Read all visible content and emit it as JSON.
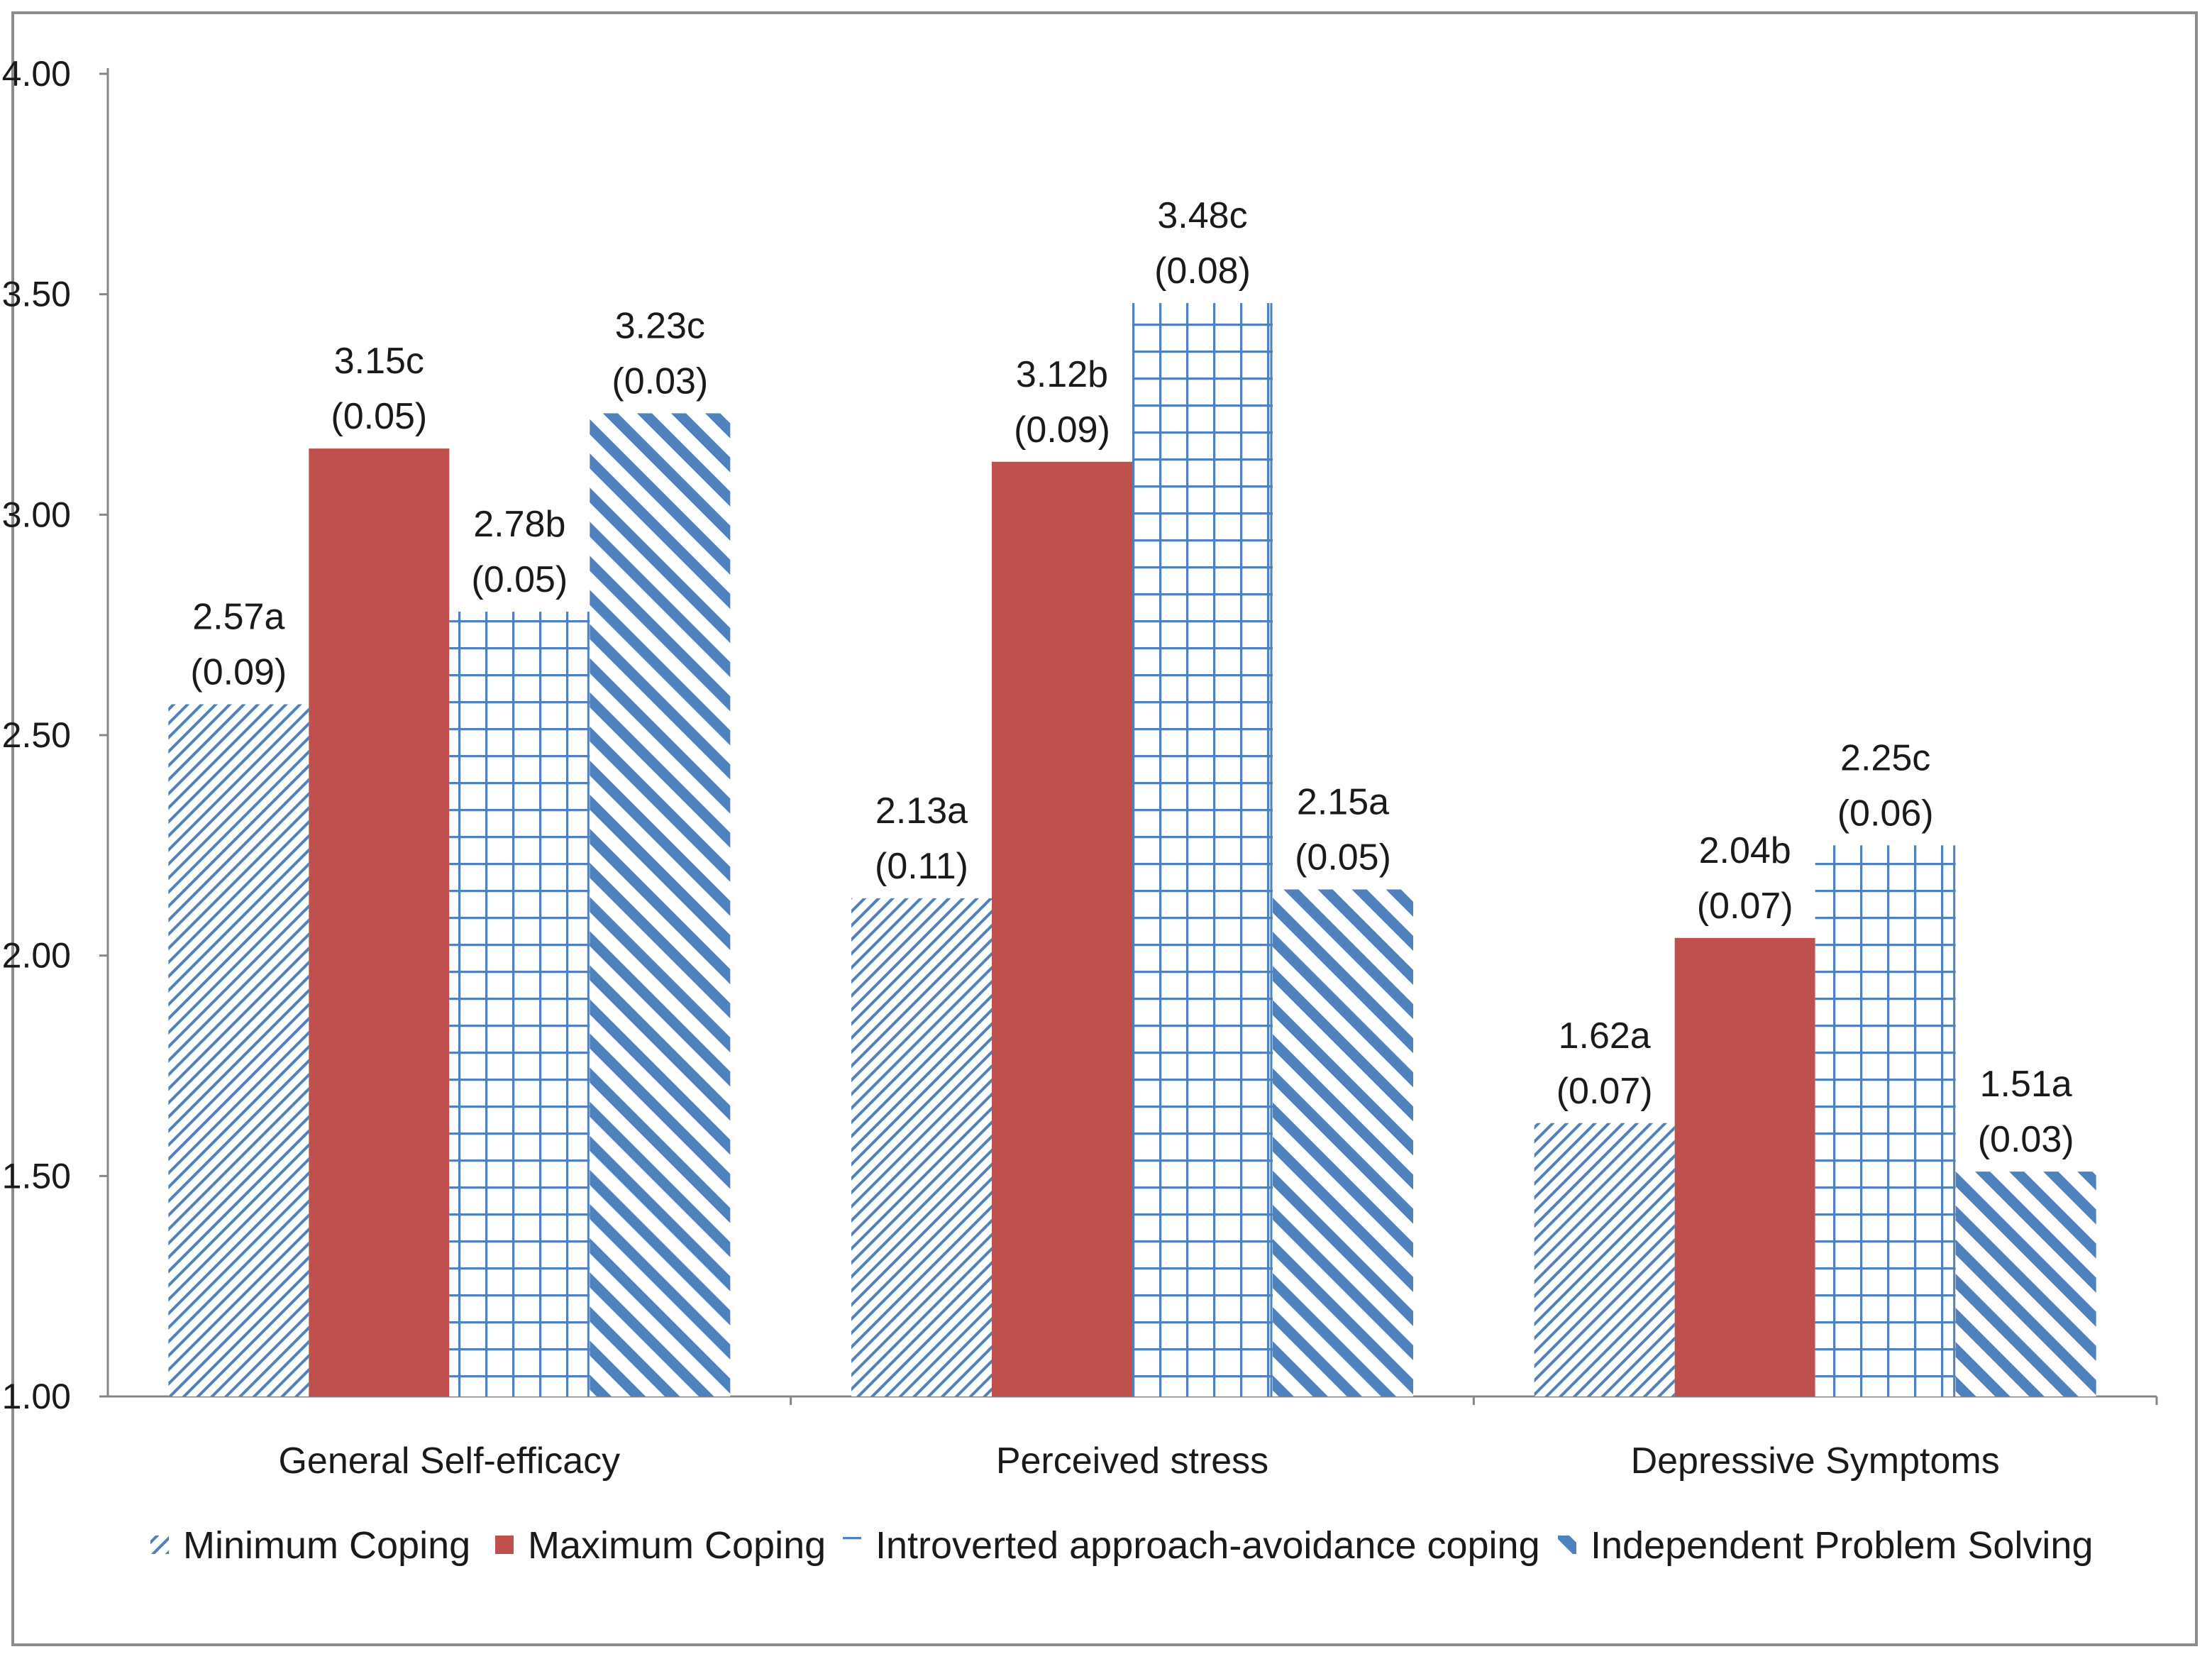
{
  "chart_data": {
    "type": "bar",
    "title": "",
    "xlabel": "",
    "ylabel": "",
    "ylim": [
      1.0,
      4.0
    ],
    "yticks": [
      "1.00",
      "1.50",
      "2.00",
      "2.50",
      "3.00",
      "3.50",
      "4.00"
    ],
    "grid": false,
    "legend_position": "bottom",
    "categories": [
      "General Self-efficacy",
      "Perceived stress",
      "Depressive Symptoms"
    ],
    "series": [
      {
        "name": "Minimum Coping",
        "pattern": "diagonal-thin",
        "color": "#4f81bd",
        "values": [
          2.57,
          2.13,
          1.62
        ],
        "labels": [
          "2.57a",
          "2.13a",
          "1.62a"
        ],
        "errors": [
          "(0.09)",
          "(0.11)",
          "(0.07)"
        ]
      },
      {
        "name": "Maximum Coping",
        "pattern": "solid",
        "color": "#c0504d",
        "values": [
          3.15,
          3.12,
          2.04
        ],
        "labels": [
          "3.15c",
          "3.12b",
          "2.04b"
        ],
        "errors": [
          "(0.05)",
          "(0.09)",
          "(0.07)"
        ]
      },
      {
        "name": "Introverted approach-avoidance coping",
        "pattern": "grid",
        "color": "#4f81bd",
        "values": [
          2.78,
          3.48,
          2.25
        ],
        "labels": [
          "2.78b",
          "3.48c",
          "2.25c"
        ],
        "errors": [
          "(0.05)",
          "(0.08)",
          "(0.06)"
        ]
      },
      {
        "name": "Independent Problem Solving",
        "pattern": "diagonal-wide",
        "color": "#4f81bd",
        "values": [
          3.23,
          2.15,
          1.51
        ],
        "labels": [
          "3.23c",
          "2.15a",
          "1.51a"
        ],
        "errors": [
          "(0.03)",
          "(0.05)",
          "(0.03)"
        ]
      }
    ]
  }
}
